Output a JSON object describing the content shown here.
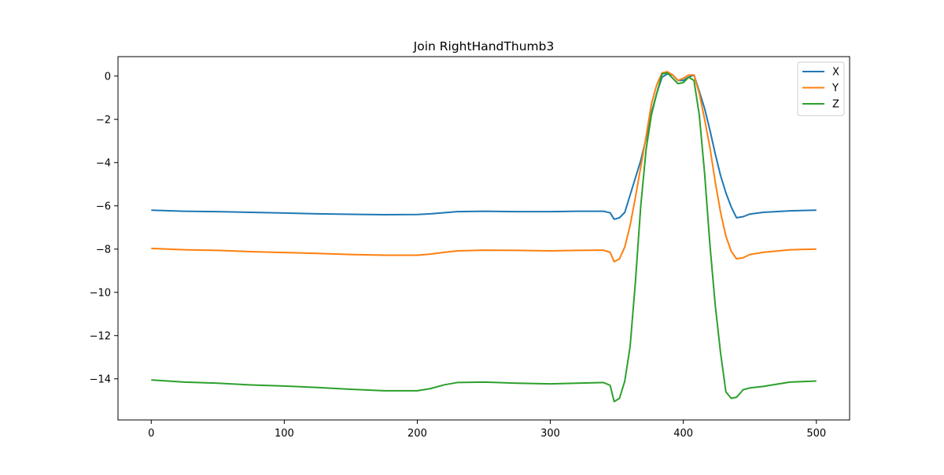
{
  "chart_data": {
    "type": "line",
    "title": "Join RightHandThumb3",
    "xlabel": "",
    "ylabel": "",
    "xlim": [
      -25,
      525
    ],
    "ylim": [
      -15.9,
      0.9
    ],
    "xticks": [
      0,
      100,
      200,
      300,
      400,
      500
    ],
    "xtick_labels": [
      "0",
      "100",
      "200",
      "300",
      "400",
      "500"
    ],
    "yticks": [
      0,
      -2,
      -4,
      -6,
      -8,
      -10,
      -12,
      -14
    ],
    "ytick_labels": [
      "0",
      "−2",
      "−4",
      "−6",
      "−8",
      "−10",
      "−12",
      "−14"
    ],
    "grid": false,
    "legend_position": "top-right",
    "series": [
      {
        "name": "X",
        "color": "#1f77b4",
        "x": [
          0,
          25,
          50,
          75,
          100,
          125,
          150,
          175,
          200,
          210,
          220,
          230,
          250,
          275,
          300,
          320,
          340,
          345,
          348,
          352,
          356,
          360,
          364,
          368,
          372,
          376,
          380,
          384,
          388,
          392,
          396,
          400,
          404,
          408,
          412,
          416,
          420,
          424,
          428,
          432,
          436,
          440,
          445,
          450,
          460,
          480,
          500
        ],
        "y": [
          -6.2,
          -6.25,
          -6.27,
          -6.3,
          -6.33,
          -6.37,
          -6.39,
          -6.41,
          -6.4,
          -6.37,
          -6.32,
          -6.27,
          -6.25,
          -6.27,
          -6.27,
          -6.25,
          -6.25,
          -6.32,
          -6.62,
          -6.55,
          -6.3,
          -5.5,
          -4.7,
          -3.9,
          -2.9,
          -1.7,
          -0.8,
          -0.05,
          0.1,
          0.05,
          -0.2,
          -0.2,
          -0.05,
          0.05,
          -0.7,
          -1.5,
          -2.5,
          -3.6,
          -4.6,
          -5.4,
          -6.05,
          -6.55,
          -6.5,
          -6.38,
          -6.3,
          -6.23,
          -6.2
        ]
      },
      {
        "name": "Y",
        "color": "#ff7f0e",
        "x": [
          0,
          25,
          50,
          75,
          100,
          125,
          150,
          175,
          200,
          210,
          220,
          230,
          250,
          275,
          300,
          320,
          340,
          345,
          348,
          352,
          356,
          360,
          364,
          368,
          372,
          376,
          380,
          384,
          388,
          392,
          396,
          400,
          404,
          408,
          412,
          416,
          420,
          424,
          428,
          432,
          436,
          440,
          445,
          450,
          460,
          480,
          500
        ],
        "y": [
          -7.97,
          -8.03,
          -8.06,
          -8.12,
          -8.16,
          -8.2,
          -8.25,
          -8.28,
          -8.28,
          -8.23,
          -8.15,
          -8.08,
          -8.05,
          -8.06,
          -8.08,
          -8.06,
          -8.05,
          -8.15,
          -8.58,
          -8.45,
          -7.9,
          -6.9,
          -5.6,
          -4.2,
          -2.8,
          -1.3,
          -0.4,
          0.15,
          0.2,
          0.05,
          -0.2,
          -0.1,
          0.05,
          0.05,
          -0.8,
          -2.0,
          -3.3,
          -4.9,
          -6.3,
          -7.4,
          -8.1,
          -8.45,
          -8.4,
          -8.25,
          -8.15,
          -8.03,
          -8.0
        ]
      },
      {
        "name": "Z",
        "color": "#2ca02c",
        "x": [
          0,
          25,
          50,
          75,
          100,
          125,
          150,
          175,
          200,
          210,
          220,
          230,
          250,
          275,
          300,
          320,
          340,
          345,
          348,
          352,
          356,
          360,
          364,
          368,
          372,
          376,
          380,
          384,
          388,
          392,
          396,
          400,
          404,
          408,
          412,
          416,
          420,
          424,
          428,
          432,
          436,
          440,
          445,
          450,
          460,
          480,
          500
        ],
        "y": [
          -14.05,
          -14.15,
          -14.2,
          -14.28,
          -14.33,
          -14.4,
          -14.48,
          -14.55,
          -14.55,
          -14.45,
          -14.28,
          -14.17,
          -14.15,
          -14.2,
          -14.23,
          -14.2,
          -14.17,
          -14.3,
          -15.05,
          -14.9,
          -14.1,
          -12.5,
          -9.5,
          -6.0,
          -3.4,
          -1.8,
          -0.8,
          0.1,
          0.15,
          -0.1,
          -0.35,
          -0.3,
          -0.05,
          -0.2,
          -1.8,
          -4.5,
          -7.8,
          -10.6,
          -12.8,
          -14.6,
          -14.9,
          -14.85,
          -14.5,
          -14.42,
          -14.35,
          -14.15,
          -14.1
        ]
      }
    ]
  }
}
